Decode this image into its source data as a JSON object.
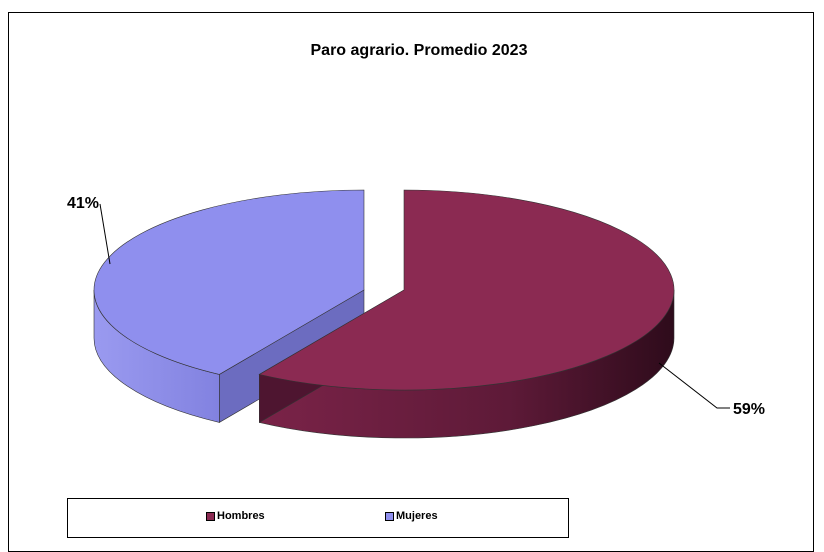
{
  "chart_data": {
    "type": "pie",
    "title": "Paro agrario. Promedio 2023",
    "categories": [
      "Hombres",
      "Mujeres"
    ],
    "values": [
      59,
      41
    ],
    "value_labels": [
      "59%",
      "41%"
    ],
    "colors": [
      "#8b2a52",
      "#8f8fee"
    ],
    "style": "3d-exploded",
    "legend_position": "bottom"
  }
}
